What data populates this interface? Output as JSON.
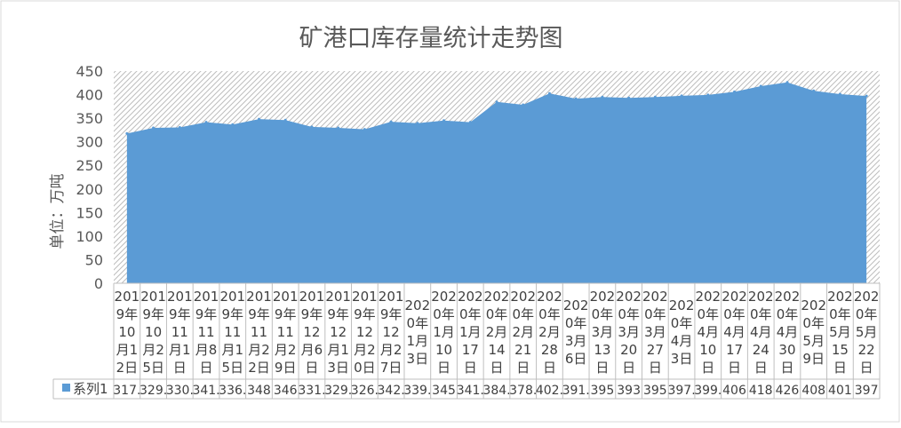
{
  "chart_data": {
    "type": "area",
    "title": "矿港口库存量统计走势图",
    "ylabel": "单位：万吨",
    "xlabel": "",
    "ylim": [
      0,
      450
    ],
    "yticks": [
      "0",
      "50",
      "100",
      "150",
      "200",
      "250",
      "300",
      "350",
      "400",
      "450"
    ],
    "grid": false,
    "plot_background": "hatched",
    "categories": [
      [
        "201",
        "9年",
        "10",
        "月1",
        "2日"
      ],
      [
        "201",
        "9年",
        "10",
        "月2",
        "5日"
      ],
      [
        "201",
        "9年",
        "11",
        "月1",
        "日"
      ],
      [
        "201",
        "9年",
        "11",
        "月8",
        "日"
      ],
      [
        "201",
        "9年",
        "11",
        "月1",
        "5日"
      ],
      [
        "201",
        "9年",
        "11",
        "月2",
        "2日"
      ],
      [
        "201",
        "9年",
        "11",
        "月2",
        "9日"
      ],
      [
        "201",
        "9年",
        "12",
        "月6",
        "日"
      ],
      [
        "201",
        "9年",
        "12",
        "月1",
        "3日"
      ],
      [
        "201",
        "9年",
        "12",
        "月2",
        "0日"
      ],
      [
        "201",
        "9年",
        "12",
        "月2",
        "7日"
      ],
      [
        "202",
        "0年",
        "1月",
        "3日"
      ],
      [
        "202",
        "0年",
        "1月",
        "10",
        "日"
      ],
      [
        "202",
        "0年",
        "1月",
        "17",
        "日"
      ],
      [
        "202",
        "0年",
        "2月",
        "14",
        "日"
      ],
      [
        "202",
        "0年",
        "2月",
        "21",
        "日"
      ],
      [
        "202",
        "0年",
        "2月",
        "28",
        "日"
      ],
      [
        "202",
        "0年",
        "3月",
        "6日"
      ],
      [
        "202",
        "0年",
        "3月",
        "13",
        "日"
      ],
      [
        "202",
        "0年",
        "3月",
        "20",
        "日"
      ],
      [
        "202",
        "0年",
        "3月",
        "27",
        "日"
      ],
      [
        "202",
        "0年",
        "4月",
        "3日"
      ],
      [
        "202",
        "0年",
        "4月",
        "10",
        "日"
      ],
      [
        "202",
        "0年",
        "4月",
        "17",
        "日"
      ],
      [
        "202",
        "0年",
        "4月",
        "24",
        "日"
      ],
      [
        "202",
        "0年",
        "4月",
        "30",
        "日"
      ],
      [
        "202",
        "0年",
        "5月",
        "9日"
      ],
      [
        "202",
        "0年",
        "5月",
        "15",
        "日"
      ],
      [
        "202",
        "0年",
        "5月",
        "22",
        "日"
      ]
    ],
    "series": [
      {
        "name": "系列1",
        "color": "#5B9BD5",
        "values": [
          317.5,
          329.5,
          330.5,
          341.5,
          336.5,
          348,
          346,
          331.5,
          329.5,
          326.5,
          342.5,
          339.5,
          345,
          341.5,
          384.5,
          378.5,
          402.5,
          391.5,
          395,
          393,
          395,
          397.5,
          399.5,
          406,
          418,
          426,
          408,
          401,
          397
        ],
        "labels": [
          "317.",
          "329.",
          "330.",
          "341.",
          "336.",
          "348",
          "346",
          "331.",
          "329.",
          "326.",
          "342.",
          "339.",
          "345",
          "341.",
          "384.",
          "378.",
          "402.",
          "391.",
          "395",
          "393",
          "395",
          "397.",
          "399.",
          "406",
          "418",
          "426",
          "408",
          "401",
          "397"
        ]
      }
    ],
    "legend": "data-table"
  }
}
